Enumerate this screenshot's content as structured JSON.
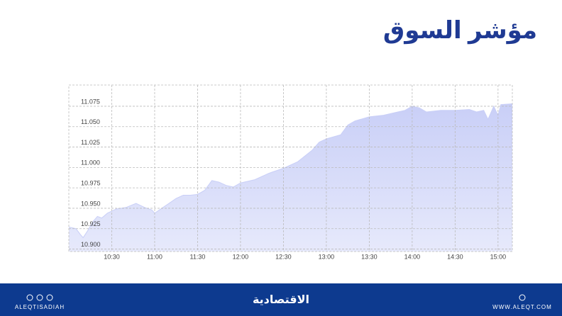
{
  "chart_data": {
    "type": "area",
    "title": "مؤشر السوق",
    "color": "#c9cff7",
    "grid": true,
    "x": [
      "10:00",
      "10:05",
      "10:08",
      "10:10",
      "10:13",
      "10:17",
      "10:20",
      "10:23",
      "10:27",
      "10:33",
      "10:40",
      "10:47",
      "10:53",
      "10:58",
      "11:00",
      "11:05",
      "11:10",
      "11:15",
      "11:20",
      "11:25",
      "11:30",
      "11:35",
      "11:40",
      "11:45",
      "11:50",
      "11:55",
      "12:00",
      "12:10",
      "12:20",
      "12:30",
      "12:40",
      "12:50",
      "12:55",
      "13:00",
      "13:10",
      "13:15",
      "13:20",
      "13:30",
      "13:40",
      "13:50",
      "13:55",
      "14:00",
      "14:05",
      "14:10",
      "14:20",
      "14:30",
      "14:40",
      "14:45",
      "14:50",
      "14:53",
      "14:57",
      "15:00",
      "15:02",
      "15:10"
    ],
    "values": [
      10.927,
      10.925,
      10.918,
      10.914,
      10.922,
      10.934,
      10.94,
      10.938,
      10.944,
      10.949,
      10.951,
      10.956,
      10.951,
      10.948,
      10.944,
      10.95,
      10.956,
      10.962,
      10.966,
      10.966,
      10.967,
      10.972,
      10.984,
      10.982,
      10.978,
      10.976,
      10.981,
      10.985,
      10.993,
      10.999,
      11.007,
      11.021,
      11.031,
      11.035,
      11.04,
      11.052,
      11.057,
      11.062,
      11.064,
      11.068,
      11.07,
      11.075,
      11.073,
      11.068,
      11.07,
      11.07,
      11.071,
      11.068,
      11.07,
      11.059,
      11.075,
      11.064,
      11.077,
      11.078
    ],
    "xlim": [
      "10:00",
      "15:10"
    ],
    "xticks": [
      "10:30",
      "11:00",
      "11:30",
      "12:00",
      "12:30",
      "13:00",
      "13:30",
      "14:00",
      "14:30",
      "15:00"
    ],
    "ylim": [
      10.897,
      11.101
    ],
    "yticks": [
      {
        "value": 10.9,
        "label": "10.900"
      },
      10.925,
      {
        "value": 10.95,
        "label": "10.950"
      },
      10.975,
      {
        "value": 11,
        "label": "11.000"
      },
      11.025,
      {
        "value": 11.05,
        "label": "11.050"
      },
      11.075
    ]
  },
  "footer": {
    "left": "ALEQTISADIAH",
    "logo": "الاقتصادية",
    "right": "WWW.ALEQT.COM"
  }
}
